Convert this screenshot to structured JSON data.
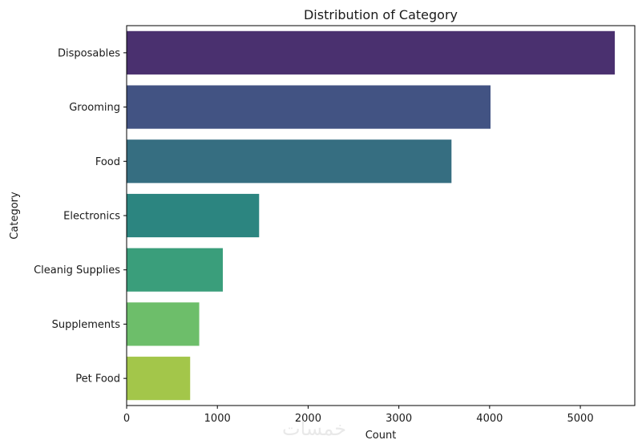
{
  "watermark": "خمسات",
  "chart_data": {
    "type": "bar",
    "orientation": "horizontal",
    "title": "Distribution of Category",
    "xlabel": "Count",
    "ylabel": "Category",
    "categories": [
      "Disposables",
      "Grooming",
      "Food",
      "Electronics",
      "Cleanig Supplies",
      "Supplements",
      "Pet Food"
    ],
    "values": [
      5380,
      4010,
      3580,
      1460,
      1060,
      800,
      700
    ],
    "colors": [
      "#4a306f",
      "#425383",
      "#366e81",
      "#2c8580",
      "#3a9e7b",
      "#6dbe6a",
      "#a3c64a"
    ],
    "xlim": [
      0,
      5600
    ],
    "xticks": [
      0,
      1000,
      2000,
      3000,
      4000,
      5000
    ],
    "xtick_labels": [
      "0",
      "1000",
      "2000",
      "3000",
      "4000",
      "5000"
    ],
    "grid": false,
    "legend": "none"
  }
}
